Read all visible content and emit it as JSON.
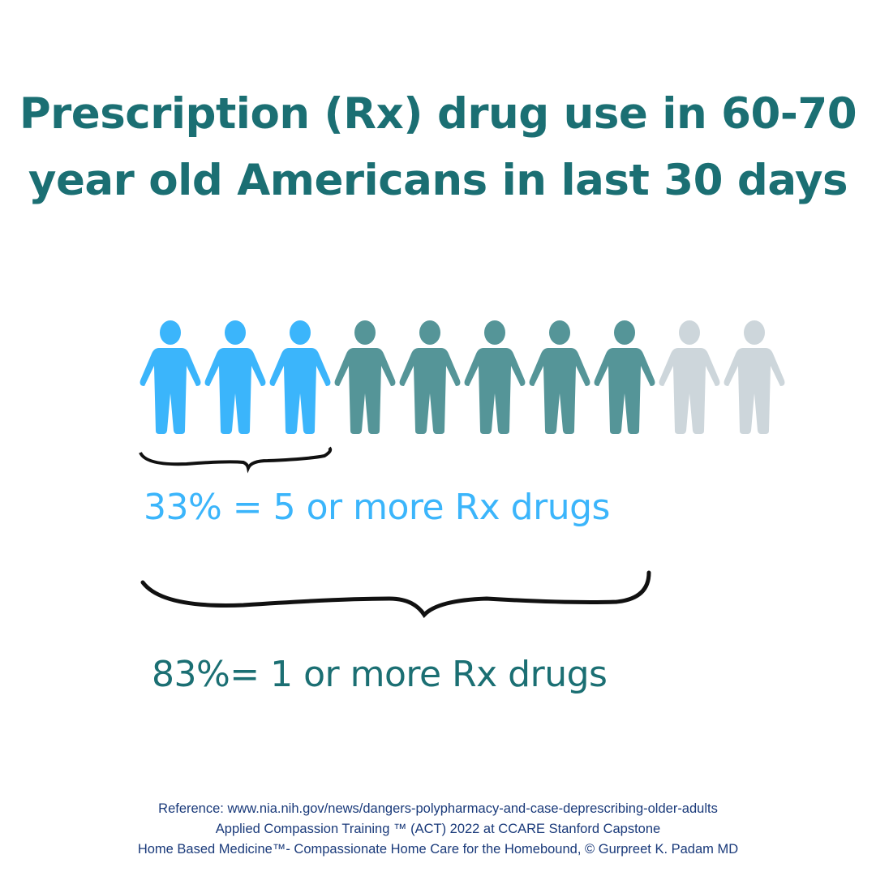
{
  "title": {
    "line1": "Prescription (Rx) drug use in 60-70",
    "line2": "year old Americans in last 30 days"
  },
  "pictograph": {
    "total_figures": 10,
    "groups": [
      {
        "count": 3,
        "color": "#3bb5fb"
      },
      {
        "count": 5,
        "color": "#559598"
      },
      {
        "count": 2,
        "color": "#cdd6db"
      }
    ],
    "icon": "person-icon"
  },
  "stats": [
    {
      "text": "33% = 5 or more Rx drugs",
      "percent": 33,
      "color": "#3bb5fb"
    },
    {
      "text": "83%= 1 or more Rx drugs",
      "percent": 83,
      "color": "#1b6f73"
    }
  ],
  "footer": {
    "line1": "Reference: www.nia.nih.gov/news/dangers-polypharmacy-and-case-deprescribing-older-adults",
    "line2": "Applied Compassion Training ™ (ACT) 2022 at CCARE Stanford Capstone",
    "line3": "Home Based Medicine™- Compassionate Home Care for the Homebound, © Gurpreet K. Padam MD"
  }
}
